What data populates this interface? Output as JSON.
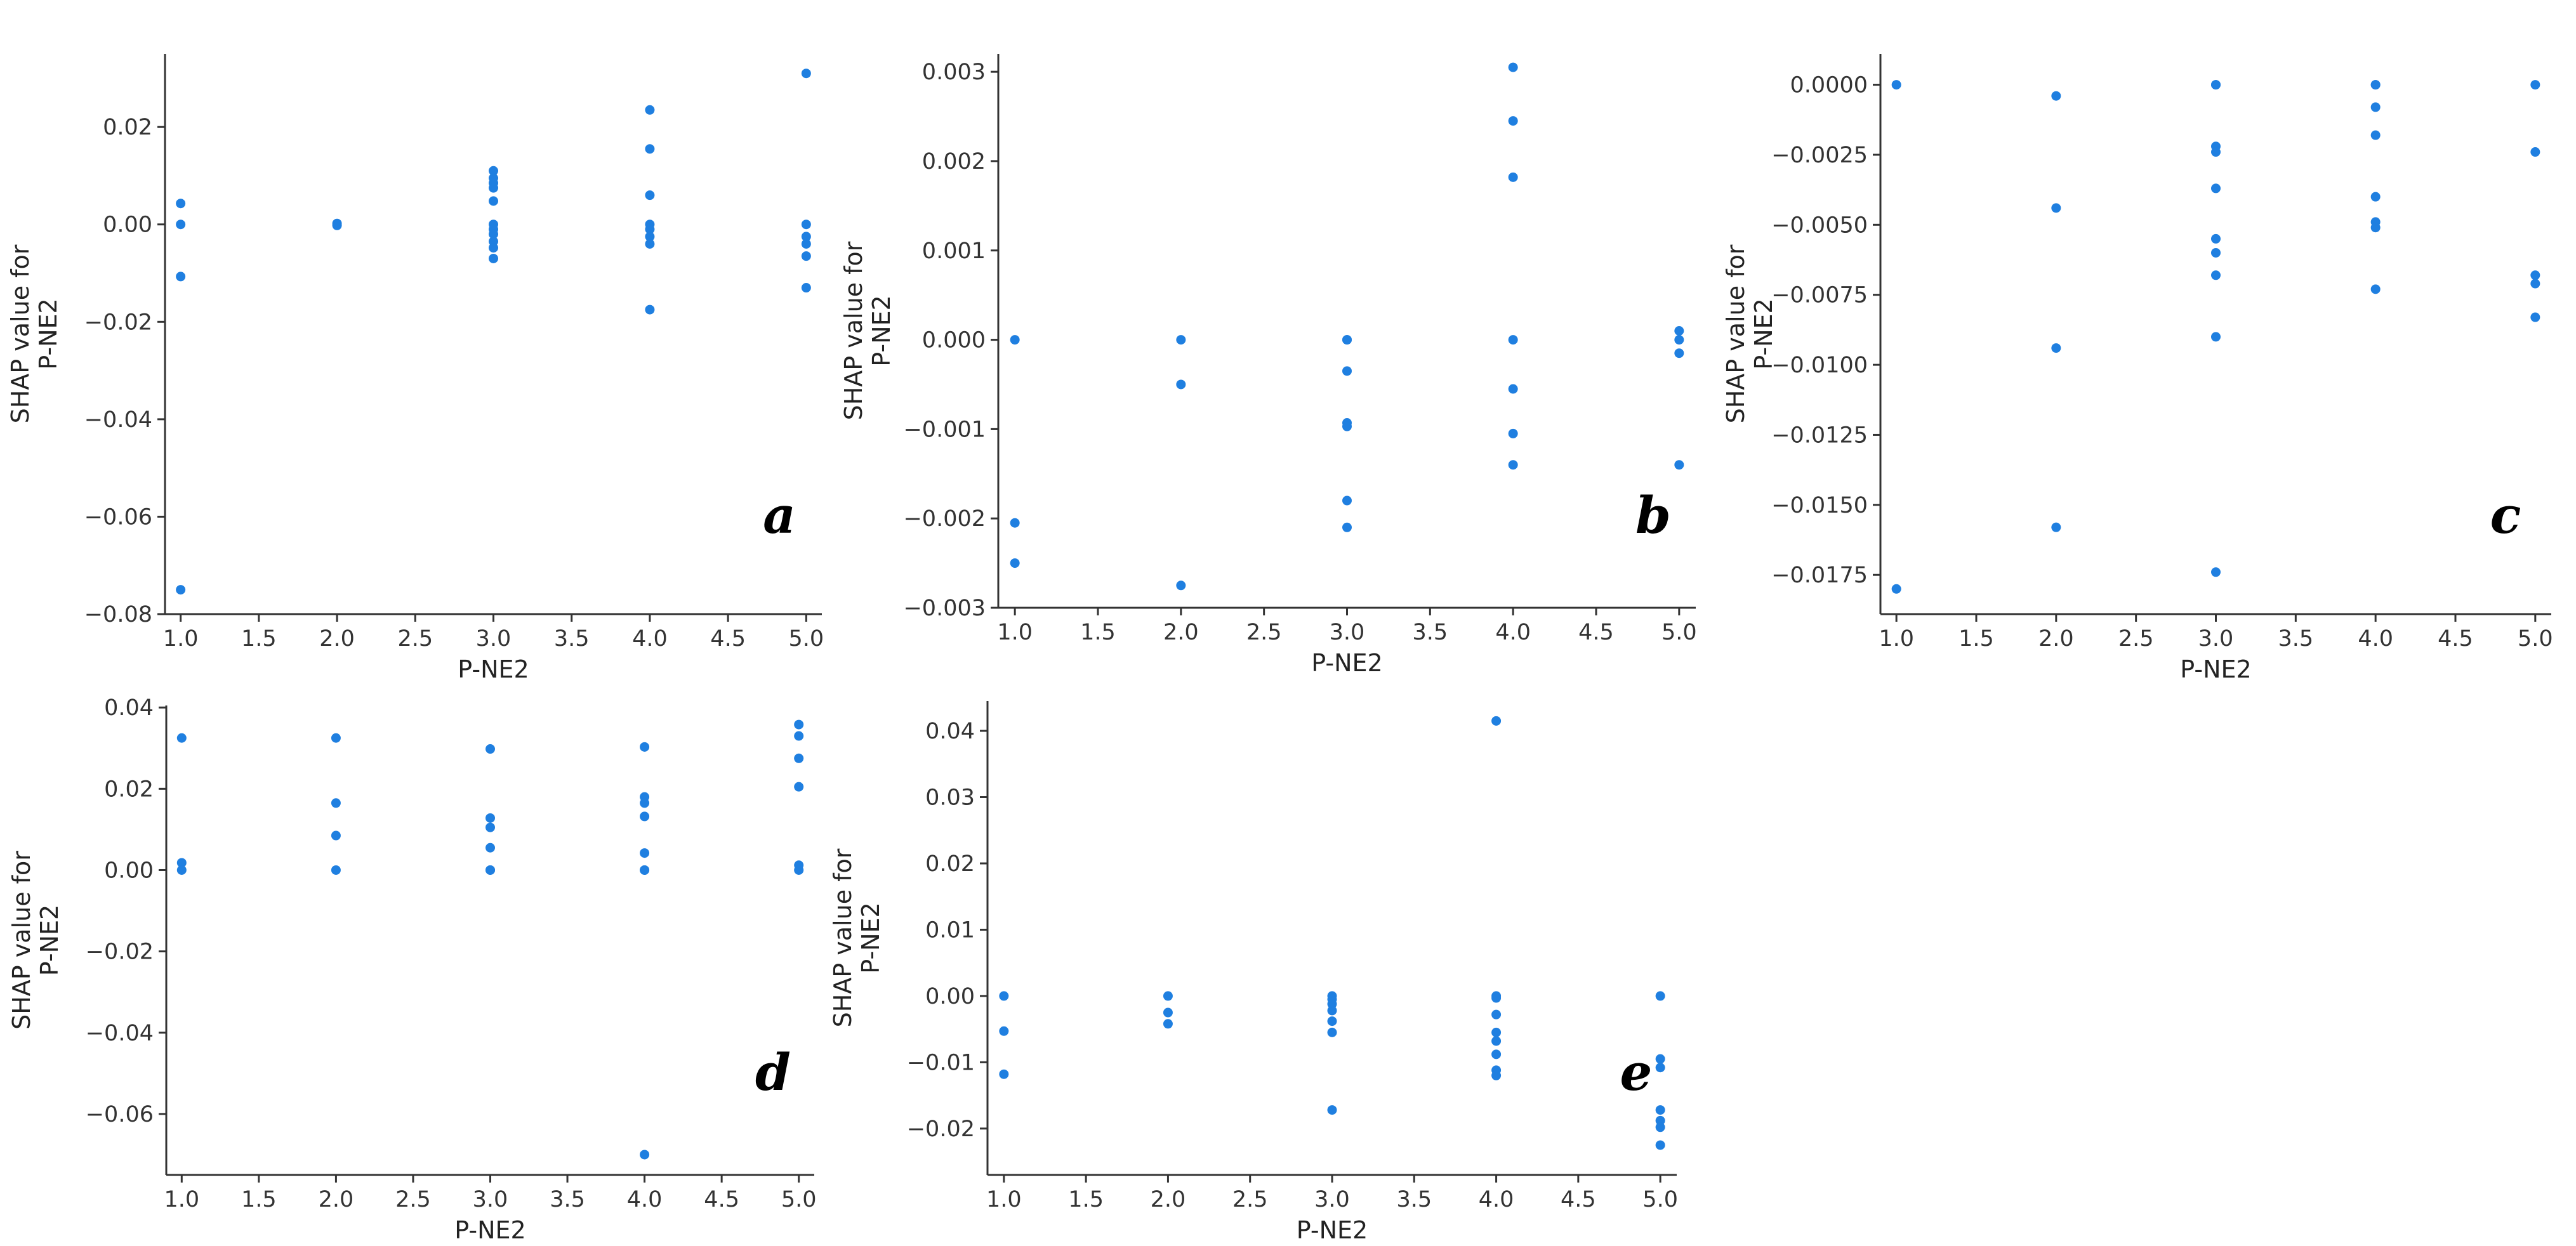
{
  "figure": {
    "dot_color": "#1f7fe0"
  },
  "chart_data": [
    {
      "type": "scatter",
      "panel_label": "a",
      "xlabel": "P-NE2",
      "ylabel": "SHAP value for\nP-NE2",
      "xlim": [
        0.9,
        5.1
      ],
      "ylim": [
        -0.08,
        0.035
      ],
      "xticks": [
        1.0,
        1.5,
        2.0,
        2.5,
        3.0,
        3.5,
        4.0,
        4.5,
        5.0
      ],
      "xtick_labels": [
        "1.0",
        "1.5",
        "2.0",
        "2.5",
        "3.0",
        "3.5",
        "4.0",
        "4.5",
        "5.0"
      ],
      "yticks": [
        -0.08,
        -0.06,
        -0.04,
        -0.02,
        0.0,
        0.02
      ],
      "ytick_labels": [
        "−0.08",
        "−0.06",
        "−0.04",
        "−0.02",
        "0.00",
        "0.02"
      ],
      "grid": false,
      "points": [
        [
          1,
          0.0043
        ],
        [
          1,
          0.0
        ],
        [
          1,
          -0.0107
        ],
        [
          1,
          -0.075
        ],
        [
          2,
          0.0002
        ],
        [
          2,
          -0.0002
        ],
        [
          3,
          0.011
        ],
        [
          3,
          0.0095
        ],
        [
          3,
          0.0085
        ],
        [
          3,
          0.0075
        ],
        [
          3,
          0.0048
        ],
        [
          3,
          0.0
        ],
        [
          3,
          -0.001
        ],
        [
          3,
          -0.002
        ],
        [
          3,
          -0.0035
        ],
        [
          3,
          -0.0048
        ],
        [
          3,
          -0.007
        ],
        [
          4,
          0.0235
        ],
        [
          4,
          0.0155
        ],
        [
          4,
          0.006
        ],
        [
          4,
          0.0
        ],
        [
          4,
          -0.001
        ],
        [
          4,
          -0.0025
        ],
        [
          4,
          -0.004
        ],
        [
          4,
          -0.0175
        ],
        [
          5,
          0.031
        ],
        [
          5,
          0.0
        ],
        [
          5,
          -0.0025
        ],
        [
          5,
          -0.004
        ],
        [
          5,
          -0.0065
        ],
        [
          5,
          -0.013
        ]
      ]
    },
    {
      "type": "scatter",
      "panel_label": "b",
      "xlabel": "P-NE2",
      "ylabel": "SHAP value for\nP-NE2",
      "xlim": [
        0.9,
        5.1
      ],
      "ylim": [
        -0.003,
        0.0032
      ],
      "xticks": [
        1.0,
        1.5,
        2.0,
        2.5,
        3.0,
        3.5,
        4.0,
        4.5,
        5.0
      ],
      "xtick_labels": [
        "1.0",
        "1.5",
        "2.0",
        "2.5",
        "3.0",
        "3.5",
        "4.0",
        "4.5",
        "5.0"
      ],
      "yticks": [
        -0.003,
        -0.002,
        -0.001,
        0.0,
        0.001,
        0.002,
        0.003
      ],
      "ytick_labels": [
        "−0.003",
        "−0.002",
        "−0.001",
        "0.000",
        "0.001",
        "0.002",
        "0.003"
      ],
      "grid": false,
      "points": [
        [
          1,
          0.0
        ],
        [
          1,
          -0.00205
        ],
        [
          1,
          -0.0025
        ],
        [
          2,
          0.0
        ],
        [
          2,
          -0.0005
        ],
        [
          2,
          -0.00275
        ],
        [
          3,
          0.0
        ],
        [
          3,
          0.0
        ],
        [
          3,
          -0.00035
        ],
        [
          3,
          -0.00093
        ],
        [
          3,
          -0.00097
        ],
        [
          3,
          -0.0018
        ],
        [
          3,
          -0.0021
        ],
        [
          4,
          0.00305
        ],
        [
          4,
          0.00245
        ],
        [
          4,
          0.00182
        ],
        [
          4,
          0.0
        ],
        [
          4,
          -0.00055
        ],
        [
          4,
          -0.00105
        ],
        [
          4,
          -0.0014
        ],
        [
          5,
          0.0001
        ],
        [
          5,
          0.0
        ],
        [
          5,
          -0.00015
        ],
        [
          5,
          -0.0014
        ]
      ]
    },
    {
      "type": "scatter",
      "panel_label": "c",
      "xlabel": "P-NE2",
      "ylabel": "SHAP value for\nP-NE2",
      "xlim": [
        0.9,
        5.1
      ],
      "ylim": [
        -0.0189,
        0.0011
      ],
      "xticks": [
        1.0,
        1.5,
        2.0,
        2.5,
        3.0,
        3.5,
        4.0,
        4.5,
        5.0
      ],
      "xtick_labels": [
        "1.0",
        "1.5",
        "2.0",
        "2.5",
        "3.0",
        "3.5",
        "4.0",
        "4.5",
        "5.0"
      ],
      "yticks": [
        0.0,
        -0.0025,
        -0.005,
        -0.0075,
        -0.01,
        -0.0125,
        -0.015,
        -0.0175
      ],
      "ytick_labels": [
        "0.0000",
        "−0.0025",
        "−0.0050",
        "−0.0075",
        "−0.0100",
        "−0.0125",
        "−0.0150",
        "−0.0175"
      ],
      "grid": false,
      "points": [
        [
          1,
          0.0
        ],
        [
          1,
          -0.018
        ],
        [
          2,
          -0.0004
        ],
        [
          2,
          -0.0044
        ],
        [
          2,
          -0.0094
        ],
        [
          2,
          -0.0158
        ],
        [
          3,
          0.0
        ],
        [
          3,
          0.0
        ],
        [
          3,
          -0.0022
        ],
        [
          3,
          -0.0024
        ],
        [
          3,
          -0.0037
        ],
        [
          3,
          -0.0055
        ],
        [
          3,
          -0.006
        ],
        [
          3,
          -0.0068
        ],
        [
          3,
          -0.009
        ],
        [
          3,
          -0.0174
        ],
        [
          4,
          0.0
        ],
        [
          4,
          0.0
        ],
        [
          4,
          -0.0008
        ],
        [
          4,
          -0.0018
        ],
        [
          4,
          -0.004
        ],
        [
          4,
          -0.0049
        ],
        [
          4,
          -0.0051
        ],
        [
          4,
          -0.0073
        ],
        [
          5,
          0.0
        ],
        [
          5,
          -0.0024
        ],
        [
          5,
          -0.0068
        ],
        [
          5,
          -0.0071
        ],
        [
          5,
          -0.0083
        ]
      ]
    },
    {
      "type": "scatter",
      "panel_label": "d",
      "xlabel": "P-NE2",
      "ylabel": "SHAP value for\nP-NE2",
      "xlim": [
        0.9,
        5.1
      ],
      "ylim": [
        -0.075,
        0.0405
      ],
      "xticks": [
        1.0,
        1.5,
        2.0,
        2.5,
        3.0,
        3.5,
        4.0,
        4.5,
        5.0
      ],
      "xtick_labels": [
        "1.0",
        "1.5",
        "2.0",
        "2.5",
        "3.0",
        "3.5",
        "4.0",
        "4.5",
        "5.0"
      ],
      "yticks": [
        -0.06,
        -0.04,
        -0.02,
        0.0,
        0.02,
        0.04
      ],
      "ytick_labels": [
        "−0.06",
        "−0.04",
        "−0.02",
        "0.00",
        "0.02",
        "0.04"
      ],
      "grid": false,
      "points": [
        [
          1,
          0.0325
        ],
        [
          1,
          0.0018
        ],
        [
          1,
          0.0
        ],
        [
          2,
          0.0325
        ],
        [
          2,
          0.0165
        ],
        [
          2,
          0.0085
        ],
        [
          2,
          0.0
        ],
        [
          3,
          0.0298
        ],
        [
          3,
          0.0128
        ],
        [
          3,
          0.0105
        ],
        [
          3,
          0.0055
        ],
        [
          3,
          0.0
        ],
        [
          3,
          0.0
        ],
        [
          4,
          0.0303
        ],
        [
          4,
          0.018
        ],
        [
          4,
          0.0165
        ],
        [
          4,
          0.0132
        ],
        [
          4,
          0.0042
        ],
        [
          4,
          0.0
        ],
        [
          4,
          0.0
        ],
        [
          4,
          -0.07
        ],
        [
          5,
          0.0358
        ],
        [
          5,
          0.033
        ],
        [
          5,
          0.0275
        ],
        [
          5,
          0.0205
        ],
        [
          5,
          0.0012
        ],
        [
          5,
          0.0
        ]
      ]
    },
    {
      "type": "scatter",
      "panel_label": "e",
      "xlabel": "P-NE2",
      "ylabel": "SHAP value for\nP-NE2",
      "xlim": [
        0.9,
        5.1
      ],
      "ylim": [
        -0.027,
        0.0445
      ],
      "xticks": [
        1.0,
        1.5,
        2.0,
        2.5,
        3.0,
        3.5,
        4.0,
        4.5,
        5.0
      ],
      "xtick_labels": [
        "1.0",
        "1.5",
        "2.0",
        "2.5",
        "3.0",
        "3.5",
        "4.0",
        "4.5",
        "5.0"
      ],
      "yticks": [
        -0.02,
        -0.01,
        0.0,
        0.01,
        0.02,
        0.03,
        0.04
      ],
      "ytick_labels": [
        "−0.02",
        "−0.01",
        "0.00",
        "0.01",
        "0.02",
        "0.03",
        "0.04"
      ],
      "grid": false,
      "points": [
        [
          1,
          0.0
        ],
        [
          1,
          -0.0053
        ],
        [
          1,
          -0.0118
        ],
        [
          2,
          0.0
        ],
        [
          2,
          -0.0025
        ],
        [
          2,
          -0.0042
        ],
        [
          3,
          0.0
        ],
        [
          3,
          -0.0005
        ],
        [
          3,
          -0.0012
        ],
        [
          3,
          -0.0022
        ],
        [
          3,
          -0.0038
        ],
        [
          3,
          -0.0055
        ],
        [
          3,
          -0.0172
        ],
        [
          4,
          0.0415
        ],
        [
          4,
          0.0
        ],
        [
          4,
          -0.0003
        ],
        [
          4,
          -0.0028
        ],
        [
          4,
          -0.0055
        ],
        [
          4,
          -0.0068
        ],
        [
          4,
          -0.0088
        ],
        [
          4,
          -0.0112
        ],
        [
          4,
          -0.012
        ],
        [
          5,
          0.0
        ],
        [
          5,
          -0.0095
        ],
        [
          5,
          -0.0108
        ],
        [
          5,
          -0.0172
        ],
        [
          5,
          -0.0188
        ],
        [
          5,
          -0.0198
        ],
        [
          5,
          -0.0225
        ]
      ]
    }
  ]
}
